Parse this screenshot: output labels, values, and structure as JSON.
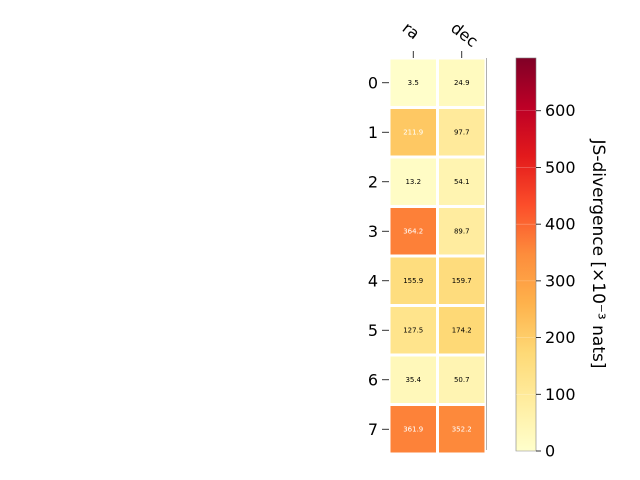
{
  "chart_data": {
    "type": "heatmap",
    "columns": [
      "ra",
      "dec"
    ],
    "rows": [
      "0",
      "1",
      "2",
      "3",
      "4",
      "5",
      "6",
      "7"
    ],
    "values": [
      [
        3.5,
        24.9
      ],
      [
        211.9,
        97.7
      ],
      [
        13.2,
        54.1
      ],
      [
        364.2,
        89.7
      ],
      [
        155.9,
        159.7
      ],
      [
        127.5,
        174.2
      ],
      [
        35.4,
        50.7
      ],
      [
        361.9,
        352.2
      ]
    ],
    "colorbar": {
      "label": "JS-divergence [×10⁻³ nats]",
      "range": [
        0,
        693
      ],
      "ticks": [
        0,
        100,
        200,
        300,
        400,
        500,
        600
      ],
      "colormap": "YlOrRd"
    },
    "title": "",
    "xlabel": "",
    "ylabel": ""
  }
}
